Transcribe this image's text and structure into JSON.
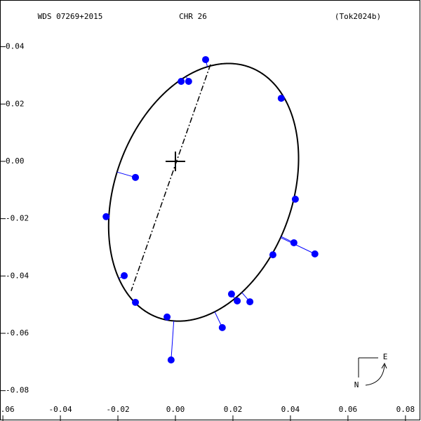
{
  "chart_data": {
    "type": "orbit",
    "title": "WDS 07269+2015",
    "subtitle": "CHR  26",
    "reference": "(Tok2024b)",
    "compass": {
      "east": "E",
      "north": "N"
    },
    "color": "#0000ff",
    "xlim": [
      -0.061,
      0.0854
    ],
    "ylim": [
      -0.0906,
      0.0563
    ],
    "xticks": [
      -0.06,
      -0.04,
      -0.02,
      {
        "value": 0,
        "label": "0.00"
      },
      0.02,
      0.04,
      0.06,
      0.08
    ],
    "yticks": [
      0.04,
      0.02,
      {
        "value": 0,
        "label": "0.00"
      },
      -0.02,
      -0.04,
      -0.06,
      -0.08
    ],
    "orbit": {
      "center": [
        0.0098,
        -0.0108
      ],
      "semi_major": 0.0465,
      "semi_minor": 0.0308,
      "tilt": 20
    },
    "node_line": {
      "x": [
        0.0122,
        -0.0154
      ],
      "y": [
        0.0338,
        -0.0452
      ]
    },
    "x": [
      0.0105,
      0.002,
      0.0046,
      0.0368,
      -0.0139,
      0.0417,
      -0.0241,
      0.0412,
      0.0485,
      0.0339,
      -0.0178,
      0.0195,
      0.0215,
      0.0259,
      -0.0139,
      -0.0029,
      0.0163,
      -0.0015
    ],
    "values": [
      0.0355,
      0.0279,
      0.0279,
      0.022,
      -0.0056,
      -0.0132,
      -0.0193,
      -0.0284,
      -0.0323,
      -0.0326,
      -0.0399,
      -0.0463,
      -0.0487,
      -0.049,
      -0.0492,
      -0.0543,
      -0.058,
      -0.0693
    ]
  }
}
